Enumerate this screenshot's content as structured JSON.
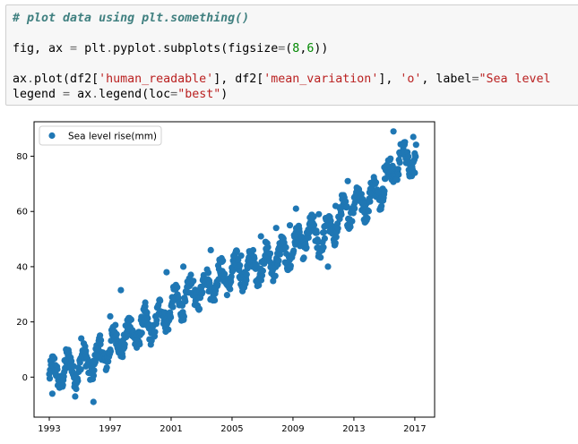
{
  "code_cell": {
    "lines": [
      {
        "parts": [
          {
            "t": "# plot data using plt.something()",
            "c": "cm"
          }
        ]
      },
      {
        "parts": []
      },
      {
        "parts": [
          {
            "t": "fig, ax ",
            "c": "kw"
          },
          {
            "t": "=",
            "c": "op"
          },
          {
            "t": " plt",
            "c": "kw"
          },
          {
            "t": ".",
            "c": "op"
          },
          {
            "t": "pyplot",
            "c": "kw"
          },
          {
            "t": ".",
            "c": "op"
          },
          {
            "t": "subplots(figsize",
            "c": "kw"
          },
          {
            "t": "=",
            "c": "op"
          },
          {
            "t": "(",
            "c": "kw"
          },
          {
            "t": "8",
            "c": "num"
          },
          {
            "t": ",",
            "c": "kw"
          },
          {
            "t": "6",
            "c": "num"
          },
          {
            "t": "))",
            "c": "kw"
          }
        ]
      },
      {
        "parts": []
      },
      {
        "parts": [
          {
            "t": "ax",
            "c": "kw"
          },
          {
            "t": ".",
            "c": "op"
          },
          {
            "t": "plot(df2[",
            "c": "kw"
          },
          {
            "t": "'human_readable'",
            "c": "str"
          },
          {
            "t": "], df2[",
            "c": "kw"
          },
          {
            "t": "'mean_variation'",
            "c": "str"
          },
          {
            "t": "], ",
            "c": "kw"
          },
          {
            "t": "'o'",
            "c": "str"
          },
          {
            "t": ", label",
            "c": "kw"
          },
          {
            "t": "=",
            "c": "op"
          },
          {
            "t": "\"Sea level",
            "c": "str"
          }
        ]
      },
      {
        "parts": [
          {
            "t": "legend ",
            "c": "kw"
          },
          {
            "t": "=",
            "c": "op"
          },
          {
            "t": " ax",
            "c": "kw"
          },
          {
            "t": ".",
            "c": "op"
          },
          {
            "t": "legend(loc",
            "c": "kw"
          },
          {
            "t": "=",
            "c": "op"
          },
          {
            "t": "\"best\"",
            "c": "str"
          },
          {
            "t": ")",
            "c": "kw"
          }
        ]
      }
    ]
  },
  "chart_data": {
    "type": "scatter",
    "marker": "o",
    "color": "#1f77b4",
    "legend": {
      "label": "Sea level rise(mm)",
      "loc": "upper left"
    },
    "grid": false,
    "xlim": [
      1992.0,
      2018.3
    ],
    "ylim": [
      -14.5,
      92.5
    ],
    "xticks": [
      1993,
      1997,
      2001,
      2005,
      2009,
      2013,
      2017
    ],
    "xtick_labels": [
      "1993",
      "1997",
      "2001",
      "2005",
      "2009",
      "2013",
      "2017"
    ],
    "yticks": [
      0,
      20,
      40,
      60,
      80
    ],
    "ytick_labels": [
      "0",
      "20",
      "40",
      "60",
      "80"
    ],
    "trend": [
      [
        1993.0,
        0
      ],
      [
        1994.0,
        2.5
      ],
      [
        1995.0,
        4
      ],
      [
        1996.0,
        6
      ],
      [
        1997.0,
        11
      ],
      [
        1998.0,
        15
      ],
      [
        1999.0,
        17
      ],
      [
        2000.0,
        20
      ],
      [
        2001.0,
        25
      ],
      [
        2002.0,
        29
      ],
      [
        2003.0,
        32
      ],
      [
        2004.0,
        35
      ],
      [
        2005.0,
        38
      ],
      [
        2006.0,
        39
      ],
      [
        2007.0,
        41
      ],
      [
        2008.0,
        43
      ],
      [
        2009.0,
        46
      ],
      [
        2010.0,
        52
      ],
      [
        2011.0,
        50
      ],
      [
        2012.0,
        57
      ],
      [
        2013.0,
        63
      ],
      [
        2014.0,
        64
      ],
      [
        2015.0,
        70
      ],
      [
        2016.0,
        79
      ],
      [
        2017.0,
        79
      ]
    ],
    "extremes": [
      [
        1993.2,
        -6
      ],
      [
        1994.1,
        10
      ],
      [
        1994.7,
        -7
      ],
      [
        1995.1,
        14
      ],
      [
        1995.4,
        9.5
      ],
      [
        1995.9,
        -9
      ],
      [
        1997.0,
        22
      ],
      [
        1997.7,
        31.5
      ],
      [
        1999.3,
        27
      ],
      [
        2000.7,
        38
      ],
      [
        2001.8,
        40
      ],
      [
        2003.6,
        46
      ],
      [
        2005.6,
        44
      ],
      [
        2006.9,
        51
      ],
      [
        2007.9,
        54
      ],
      [
        2008.8,
        55
      ],
      [
        2009.2,
        61
      ],
      [
        2010.7,
        59
      ],
      [
        2011.3,
        40
      ],
      [
        2011.8,
        62
      ],
      [
        2012.6,
        71
      ],
      [
        2013.6,
        63
      ],
      [
        2014.4,
        70
      ],
      [
        2015.0,
        76
      ],
      [
        2015.6,
        89
      ],
      [
        2016.3,
        85
      ],
      [
        2016.9,
        87
      ],
      [
        2017.0,
        74
      ]
    ]
  }
}
